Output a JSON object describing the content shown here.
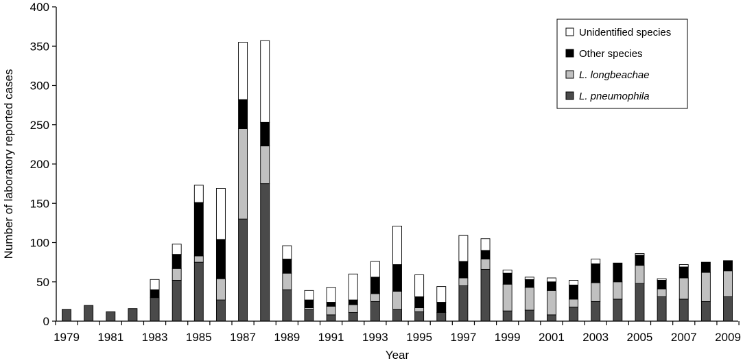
{
  "chart_data": {
    "type": "bar",
    "stacked": true,
    "title": "",
    "xlabel": "Year",
    "ylabel": "Number of laboratory reported cases",
    "ylim": [
      0,
      400
    ],
    "yticks": [
      0,
      50,
      100,
      150,
      200,
      250,
      300,
      350,
      400
    ],
    "xtick_labels": [
      "1979",
      "1981",
      "1983",
      "1985",
      "1987",
      "1989",
      "1991",
      "1993",
      "1995",
      "1997",
      "1999",
      "2001",
      "2003",
      "2005",
      "2007",
      "2009"
    ],
    "legend_position": "top-right",
    "grid": false,
    "categories": [
      "1979",
      "1980",
      "1981",
      "1982",
      "1983",
      "1984",
      "1985",
      "1986",
      "1987",
      "1988",
      "1989",
      "1990",
      "1991",
      "1992",
      "1993",
      "1994",
      "1995",
      "1996",
      "1997",
      "1998",
      "1999",
      "2000",
      "2001",
      "2002",
      "2003",
      "2004",
      "2005",
      "2006",
      "2007",
      "2008",
      "2009"
    ],
    "series": [
      {
        "name": "L. pneumophila",
        "color": "#4a4a4a",
        "italic": true,
        "values": [
          15,
          20,
          12,
          16,
          30,
          52,
          75,
          27,
          130,
          175,
          40,
          15,
          8,
          11,
          25,
          15,
          12,
          11,
          45,
          66,
          13,
          14,
          8,
          18,
          25,
          28,
          48,
          31,
          28,
          25,
          31
        ]
      },
      {
        "name": "L. longbeachae",
        "color": "#c0c0c0",
        "italic": true,
        "values": [
          0,
          0,
          0,
          0,
          0,
          15,
          8,
          27,
          115,
          48,
          21,
          2,
          11,
          10,
          10,
          23,
          5,
          0,
          10,
          13,
          34,
          29,
          31,
          10,
          24,
          22,
          23,
          10,
          27,
          37,
          33
        ]
      },
      {
        "name": "Other species",
        "color": "#000000",
        "italic": false,
        "values": [
          0,
          0,
          0,
          0,
          10,
          18,
          68,
          50,
          37,
          30,
          18,
          10,
          5,
          6,
          21,
          34,
          14,
          13,
          21,
          11,
          14,
          10,
          11,
          18,
          24,
          24,
          13,
          11,
          14,
          13,
          13
        ]
      },
      {
        "name": "Unidentified species",
        "color": "#ffffff",
        "italic": false,
        "values": [
          0,
          0,
          0,
          0,
          13,
          13,
          22,
          65,
          73,
          104,
          17,
          12,
          19,
          33,
          20,
          49,
          28,
          20,
          33,
          15,
          4,
          3,
          5,
          6,
          6,
          0,
          2,
          2,
          3,
          0,
          0
        ]
      }
    ]
  }
}
